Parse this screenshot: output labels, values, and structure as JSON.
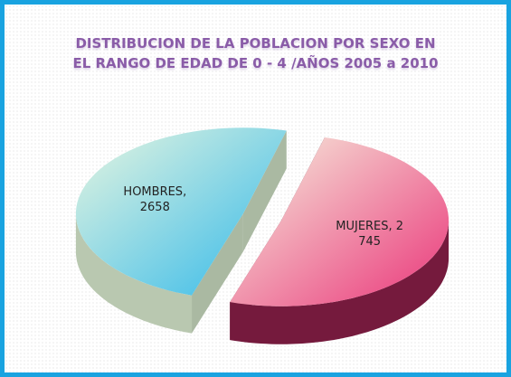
{
  "chart_data": {
    "type": "pie3d",
    "title": "DISTRIBUCION DE LA POBLACION POR SEXO EN EL RANGO DE EDAD DE 0 - 4 /AÑOS 2005 a 2010",
    "values": [
      2658,
      2745
    ],
    "value_labels": [
      "HOMBRES, 2658",
      "MUJERES, 2745"
    ],
    "colors": [
      "#2fb8ea",
      "#ea3479"
    ]
  }
}
